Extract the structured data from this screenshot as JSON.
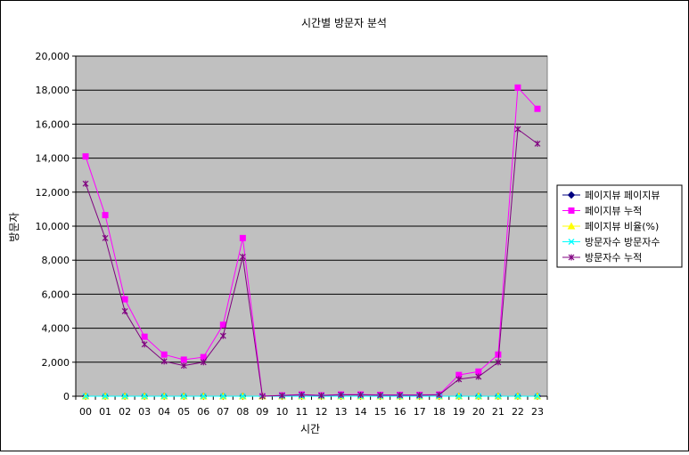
{
  "chart_data": {
    "type": "line",
    "title": "시간별 방문자 분석",
    "xlabel": "시간",
    "ylabel": "방문자",
    "categories": [
      "00",
      "01",
      "02",
      "03",
      "04",
      "05",
      "06",
      "07",
      "08",
      "09",
      "10",
      "11",
      "12",
      "13",
      "14",
      "15",
      "16",
      "17",
      "18",
      "19",
      "20",
      "21",
      "22",
      "23"
    ],
    "ylim": [
      0,
      20000
    ],
    "yticks": [
      0,
      2000,
      4000,
      6000,
      8000,
      10000,
      12000,
      14000,
      16000,
      18000,
      20000
    ],
    "ytick_labels": [
      "0",
      "2,000",
      "4,000",
      "6,000",
      "8,000",
      "10,000",
      "12,000",
      "14,000",
      "16,000",
      "18,000",
      "20,000"
    ],
    "grid": true,
    "plot_background": "#c0c0c0",
    "legend_position": "right",
    "series": [
      {
        "name": "페이지뷰 페이지뷰",
        "color": "#000080",
        "marker": "diamond",
        "values": [
          0,
          0,
          0,
          0,
          0,
          0,
          0,
          0,
          0,
          0,
          0,
          0,
          0,
          0,
          0,
          0,
          0,
          0,
          0,
          0,
          0,
          0,
          0,
          0
        ]
      },
      {
        "name": "페이지뷰 누적",
        "color": "#ff00ff",
        "marker": "square",
        "values": [
          14100,
          10650,
          5700,
          3500,
          2450,
          2150,
          2300,
          4200,
          9300,
          0,
          50,
          100,
          50,
          100,
          100,
          80,
          80,
          80,
          100,
          1250,
          1450,
          2450,
          18150,
          16900
        ]
      },
      {
        "name": "페이지뷰 비율(%)",
        "color": "#ffff00",
        "marker": "triangle",
        "values": [
          0,
          0,
          0,
          0,
          0,
          0,
          0,
          0,
          0,
          0,
          0,
          0,
          0,
          0,
          0,
          0,
          0,
          0,
          0,
          0,
          0,
          0,
          0,
          0
        ]
      },
      {
        "name": "방문자수 방문자수",
        "color": "#00ffff",
        "marker": "x",
        "values": [
          0,
          0,
          0,
          0,
          0,
          0,
          0,
          0,
          0,
          0,
          0,
          0,
          0,
          0,
          0,
          0,
          0,
          0,
          0,
          0,
          0,
          0,
          0,
          0
        ]
      },
      {
        "name": "방문자수 누적",
        "color": "#800080",
        "marker": "star",
        "values": [
          12500,
          9300,
          5000,
          3050,
          2050,
          1800,
          2000,
          3550,
          8200,
          0,
          40,
          80,
          40,
          80,
          80,
          60,
          60,
          60,
          80,
          1000,
          1150,
          2000,
          15700,
          14850
        ]
      }
    ]
  }
}
